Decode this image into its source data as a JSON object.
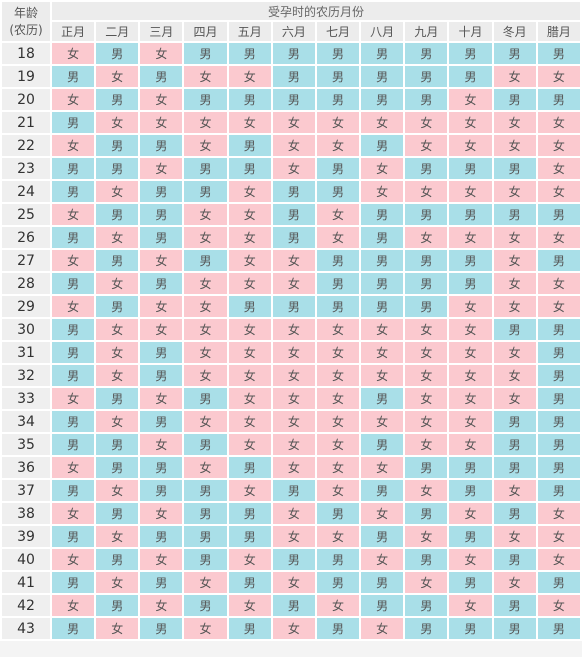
{
  "header": {
    "age_label_line1": "年龄",
    "age_label_line2": "(农历)",
    "month_caption": "受孕时的农历月份"
  },
  "months": [
    "正月",
    "二月",
    "三月",
    "四月",
    "五月",
    "六月",
    "七月",
    "八月",
    "九月",
    "十月",
    "冬月",
    "腊月"
  ],
  "legend": {
    "boy": "男",
    "girl": "女"
  },
  "colors": {
    "boy": "#a9dfe8",
    "girl": "#fbc9cf"
  },
  "rows": [
    {
      "age": "18",
      "cells": [
        "女",
        "男",
        "女",
        "男",
        "男",
        "男",
        "男",
        "男",
        "男",
        "男",
        "男",
        "男"
      ]
    },
    {
      "age": "19",
      "cells": [
        "男",
        "女",
        "男",
        "女",
        "女",
        "男",
        "男",
        "男",
        "男",
        "男",
        "女",
        "女"
      ]
    },
    {
      "age": "20",
      "cells": [
        "女",
        "男",
        "女",
        "男",
        "男",
        "男",
        "男",
        "男",
        "男",
        "女",
        "男",
        "男"
      ]
    },
    {
      "age": "21",
      "cells": [
        "男",
        "女",
        "女",
        "女",
        "女",
        "女",
        "女",
        "女",
        "女",
        "女",
        "女",
        "女"
      ]
    },
    {
      "age": "22",
      "cells": [
        "女",
        "男",
        "男",
        "女",
        "男",
        "女",
        "女",
        "男",
        "女",
        "女",
        "女",
        "女"
      ]
    },
    {
      "age": "23",
      "cells": [
        "男",
        "男",
        "女",
        "男",
        "男",
        "女",
        "男",
        "女",
        "男",
        "男",
        "男",
        "女"
      ]
    },
    {
      "age": "24",
      "cells": [
        "男",
        "女",
        "男",
        "男",
        "女",
        "男",
        "男",
        "女",
        "女",
        "女",
        "女",
        "女"
      ]
    },
    {
      "age": "25",
      "cells": [
        "女",
        "男",
        "男",
        "女",
        "女",
        "男",
        "女",
        "男",
        "男",
        "男",
        "男",
        "男"
      ]
    },
    {
      "age": "26",
      "cells": [
        "男",
        "女",
        "男",
        "女",
        "女",
        "男",
        "女",
        "男",
        "女",
        "女",
        "女",
        "女"
      ]
    },
    {
      "age": "27",
      "cells": [
        "女",
        "男",
        "女",
        "男",
        "女",
        "女",
        "男",
        "男",
        "男",
        "男",
        "女",
        "男"
      ]
    },
    {
      "age": "28",
      "cells": [
        "男",
        "女",
        "男",
        "女",
        "女",
        "女",
        "男",
        "男",
        "男",
        "男",
        "女",
        "女"
      ]
    },
    {
      "age": "29",
      "cells": [
        "女",
        "男",
        "女",
        "女",
        "男",
        "男",
        "男",
        "男",
        "男",
        "女",
        "女",
        "女"
      ]
    },
    {
      "age": "30",
      "cells": [
        "男",
        "女",
        "女",
        "女",
        "女",
        "女",
        "女",
        "女",
        "女",
        "女",
        "男",
        "男"
      ]
    },
    {
      "age": "31",
      "cells": [
        "男",
        "女",
        "男",
        "女",
        "女",
        "女",
        "女",
        "女",
        "女",
        "女",
        "女",
        "男"
      ]
    },
    {
      "age": "32",
      "cells": [
        "男",
        "女",
        "男",
        "女",
        "女",
        "女",
        "女",
        "女",
        "女",
        "女",
        "女",
        "男"
      ]
    },
    {
      "age": "33",
      "cells": [
        "女",
        "男",
        "女",
        "男",
        "女",
        "女",
        "女",
        "男",
        "女",
        "女",
        "女",
        "男"
      ]
    },
    {
      "age": "34",
      "cells": [
        "男",
        "女",
        "男",
        "女",
        "女",
        "女",
        "女",
        "女",
        "女",
        "女",
        "男",
        "男"
      ]
    },
    {
      "age": "35",
      "cells": [
        "男",
        "男",
        "女",
        "男",
        "女",
        "女",
        "女",
        "男",
        "女",
        "女",
        "男",
        "男"
      ]
    },
    {
      "age": "36",
      "cells": [
        "女",
        "男",
        "男",
        "女",
        "男",
        "女",
        "女",
        "女",
        "男",
        "男",
        "男",
        "男"
      ]
    },
    {
      "age": "37",
      "cells": [
        "男",
        "女",
        "男",
        "男",
        "女",
        "男",
        "女",
        "男",
        "女",
        "男",
        "女",
        "男"
      ]
    },
    {
      "age": "38",
      "cells": [
        "女",
        "男",
        "女",
        "男",
        "男",
        "女",
        "男",
        "女",
        "男",
        "女",
        "男",
        "女"
      ]
    },
    {
      "age": "39",
      "cells": [
        "男",
        "女",
        "男",
        "男",
        "男",
        "女",
        "女",
        "男",
        "女",
        "男",
        "女",
        "女"
      ]
    },
    {
      "age": "40",
      "cells": [
        "女",
        "男",
        "女",
        "男",
        "女",
        "男",
        "男",
        "女",
        "男",
        "女",
        "男",
        "女"
      ]
    },
    {
      "age": "41",
      "cells": [
        "男",
        "女",
        "男",
        "女",
        "男",
        "女",
        "男",
        "男",
        "女",
        "男",
        "女",
        "男"
      ]
    },
    {
      "age": "42",
      "cells": [
        "女",
        "男",
        "女",
        "男",
        "女",
        "男",
        "女",
        "男",
        "男",
        "女",
        "男",
        "女"
      ]
    },
    {
      "age": "43",
      "cells": [
        "男",
        "女",
        "男",
        "女",
        "男",
        "女",
        "男",
        "女",
        "男",
        "男",
        "男",
        "男"
      ]
    }
  ]
}
